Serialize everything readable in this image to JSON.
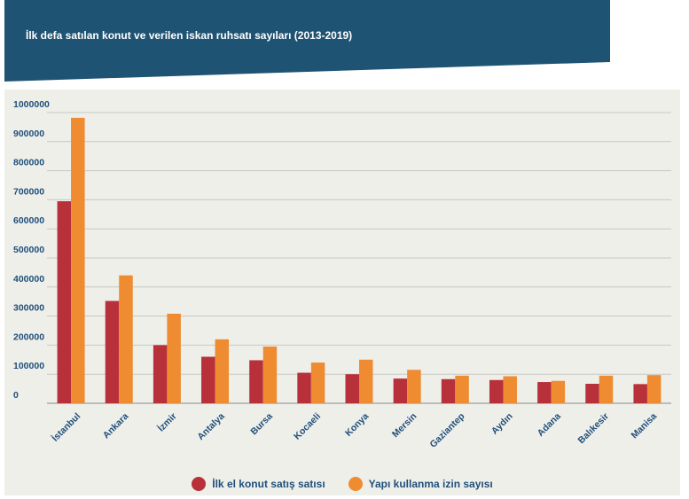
{
  "header": {
    "title": "İlk defa satılan konut ve verilen iskan ruhsatı sayıları (2013-2019)",
    "background": "#1f5373"
  },
  "colors": {
    "panel_bg": "#efefea",
    "series1": "#b8303a",
    "series2": "#ef8b30",
    "text": "#1f4e79",
    "grid": "#c8c8c2"
  },
  "chart_data": {
    "type": "bar",
    "title": "İlk defa satılan konut ve verilen iskan ruhsatı sayıları (2013-2019)",
    "categories": [
      "İstanbul",
      "Ankara",
      "İzmir",
      "Antalya",
      "Bursa",
      "Kocaeli",
      "Konya",
      "Mersin",
      "Gaziantep",
      "Aydın",
      "Adana",
      "Balıkesir",
      "Manisa"
    ],
    "series": [
      {
        "name": "İlk el konut satış satısı",
        "color": "#b8303a",
        "values": [
          695000,
          352000,
          200000,
          160000,
          148000,
          105000,
          100000,
          85000,
          83000,
          80000,
          73000,
          67000,
          66000
        ]
      },
      {
        "name": "Yapı kullanma izin sayısı",
        "color": "#ef8b30",
        "values": [
          982000,
          440000,
          308000,
          220000,
          195000,
          140000,
          150000,
          115000,
          95000,
          93000,
          77000,
          95000,
          97000
        ]
      }
    ],
    "yticks": [
      "0",
      "100000",
      "200000",
      "300000",
      "400000",
      "500000",
      "600000",
      "700000",
      "800000",
      "900000",
      "1000000"
    ],
    "ylim": [
      0,
      1000000
    ],
    "grid": true,
    "legend_position": "bottom-center"
  }
}
